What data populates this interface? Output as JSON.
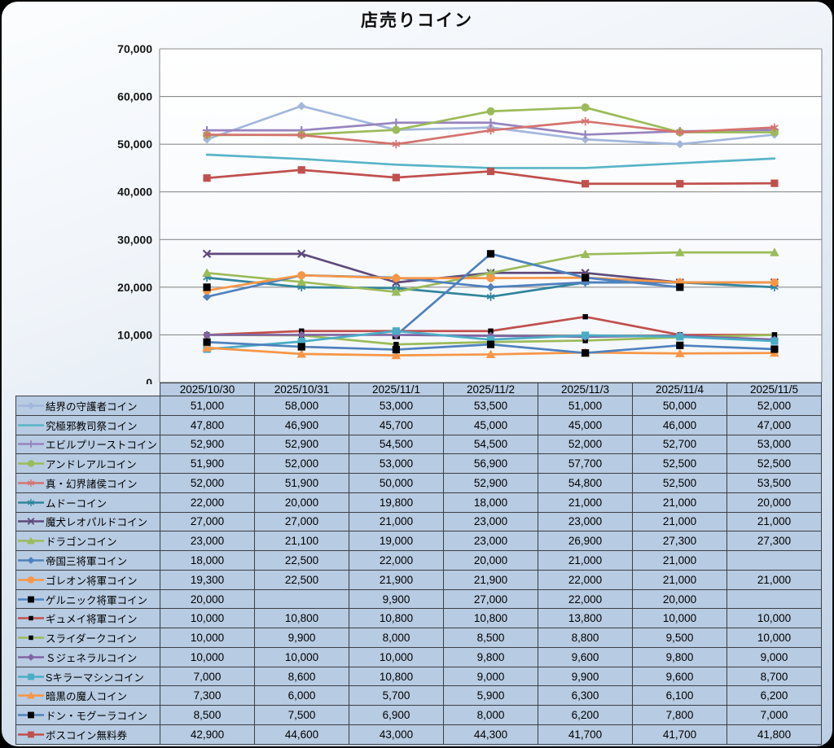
{
  "chart_data": {
    "type": "line",
    "title": "店売りコイン",
    "xlabel": "",
    "ylabel": "",
    "ylim": [
      0,
      70000
    ],
    "grid": true,
    "legend_position": "table-left",
    "y_ticks": {
      "values": [
        0,
        10000,
        20000,
        30000,
        40000,
        50000,
        60000,
        70000
      ],
      "labels": [
        "0",
        "10,000",
        "20,000",
        "30,000",
        "40,000",
        "50,000",
        "60,000",
        "70,000"
      ]
    },
    "categories": [
      "2025/10/30",
      "2025/10/31",
      "2025/11/1",
      "2025/11/2",
      "2025/11/3",
      "2025/11/4",
      "2025/11/5"
    ],
    "series": [
      {
        "name": "結界の守護者コイン",
        "color": "#a3b7db",
        "marker": "diamond",
        "marker_color": "#a3b7db",
        "values": [
          51000,
          58000,
          53000,
          53500,
          51000,
          50000,
          52000
        ]
      },
      {
        "name": "究極邪教司祭コイン",
        "color": "#58b4c8",
        "marker": "none",
        "marker_color": "#58b4c8",
        "values": [
          47800,
          46900,
          45700,
          45000,
          45000,
          46000,
          47000
        ]
      },
      {
        "name": "エビルプリーストコイン",
        "color": "#9784be",
        "marker": "plus",
        "marker_color": "#9784be",
        "values": [
          52900,
          52900,
          54500,
          54500,
          52000,
          52700,
          53000
        ]
      },
      {
        "name": "アンドレアルコイン",
        "color": "#9bbb59",
        "marker": "circle",
        "marker_color": "#9bbb59",
        "values": [
          51900,
          52000,
          53000,
          56900,
          57700,
          52500,
          52500
        ]
      },
      {
        "name": "真・幻界諸侯コイン",
        "color": "#d4736f",
        "marker": "asterisk",
        "marker_color": "#d4736f",
        "values": [
          52000,
          51900,
          50000,
          52900,
          54800,
          52500,
          53500
        ]
      },
      {
        "name": "ムドーコイン",
        "color": "#31859c",
        "marker": "asterisk",
        "marker_color": "#31859c",
        "values": [
          22000,
          20000,
          19800,
          18000,
          21000,
          21000,
          20000
        ]
      },
      {
        "name": "魔犬レオパルドコイン",
        "color": "#5f4a7b",
        "marker": "x",
        "marker_color": "#5f4a7b",
        "values": [
          27000,
          27000,
          21000,
          23000,
          23000,
          21000,
          21000
        ]
      },
      {
        "name": "ドラゴンコイン",
        "color": "#9bbb59",
        "marker": "triangle",
        "marker_color": "#9bbb59",
        "values": [
          23000,
          21100,
          19000,
          23000,
          26900,
          27300,
          27300
        ]
      },
      {
        "name": "帝国三将軍コイン",
        "color": "#4f81bd",
        "marker": "diamond",
        "marker_color": "#4f81bd",
        "values": [
          18000,
          22500,
          22000,
          20000,
          21000,
          21000,
          null
        ]
      },
      {
        "name": "ゴレオン将軍コイン",
        "color": "#f79646",
        "marker": "circle",
        "marker_color": "#f79646",
        "values": [
          19300,
          22500,
          21900,
          21900,
          22000,
          21000,
          21000
        ]
      },
      {
        "name": "ゲルニック将軍コイン",
        "color": "#4f81bd",
        "marker": "square",
        "marker_color": "#000000",
        "values": [
          20000,
          null,
          9900,
          27000,
          22000,
          20000,
          null
        ]
      },
      {
        "name": "ギュメイ将軍コイン",
        "color": "#c0504d",
        "marker": "dash",
        "marker_color": "#000000",
        "values": [
          10000,
          10800,
          10800,
          10800,
          13800,
          10000,
          10000
        ]
      },
      {
        "name": "スライダークコイン",
        "color": "#9bbb59",
        "marker": "dash",
        "marker_color": "#000000",
        "values": [
          10000,
          9900,
          8000,
          8500,
          8800,
          9500,
          10000
        ]
      },
      {
        "name": "Ｓジェネラルコイン",
        "color": "#8064a2",
        "marker": "diamond",
        "marker_color": "#8064a2",
        "values": [
          10000,
          10000,
          10000,
          9800,
          9600,
          9800,
          9000
        ]
      },
      {
        "name": "Sキラーマシンコイン",
        "color": "#4bacc6",
        "marker": "square",
        "marker_color": "#4bacc6",
        "values": [
          7000,
          8600,
          10800,
          9000,
          9900,
          9600,
          8700
        ]
      },
      {
        "name": "暗黒の魔人コイン",
        "color": "#f79646",
        "marker": "triangle",
        "marker_color": "#f79646",
        "values": [
          7300,
          6000,
          5700,
          5900,
          6300,
          6100,
          6200
        ]
      },
      {
        "name": "ドン・モグーラコイン",
        "color": "#4f81bd",
        "marker": "square",
        "marker_color": "#000000",
        "values": [
          8500,
          7500,
          6900,
          8000,
          6200,
          7800,
          7000
        ]
      },
      {
        "name": "ボスコイン無料券",
        "color": "#c0504d",
        "marker": "square",
        "marker_color": "#c0504d",
        "values": [
          42900,
          44600,
          43000,
          44300,
          41700,
          41700,
          41800
        ]
      }
    ]
  },
  "colors": {
    "table_cell_bg": "#b7cbe2",
    "grid_line": "#8c8c8c",
    "axis_line": "#7f7f7f"
  }
}
